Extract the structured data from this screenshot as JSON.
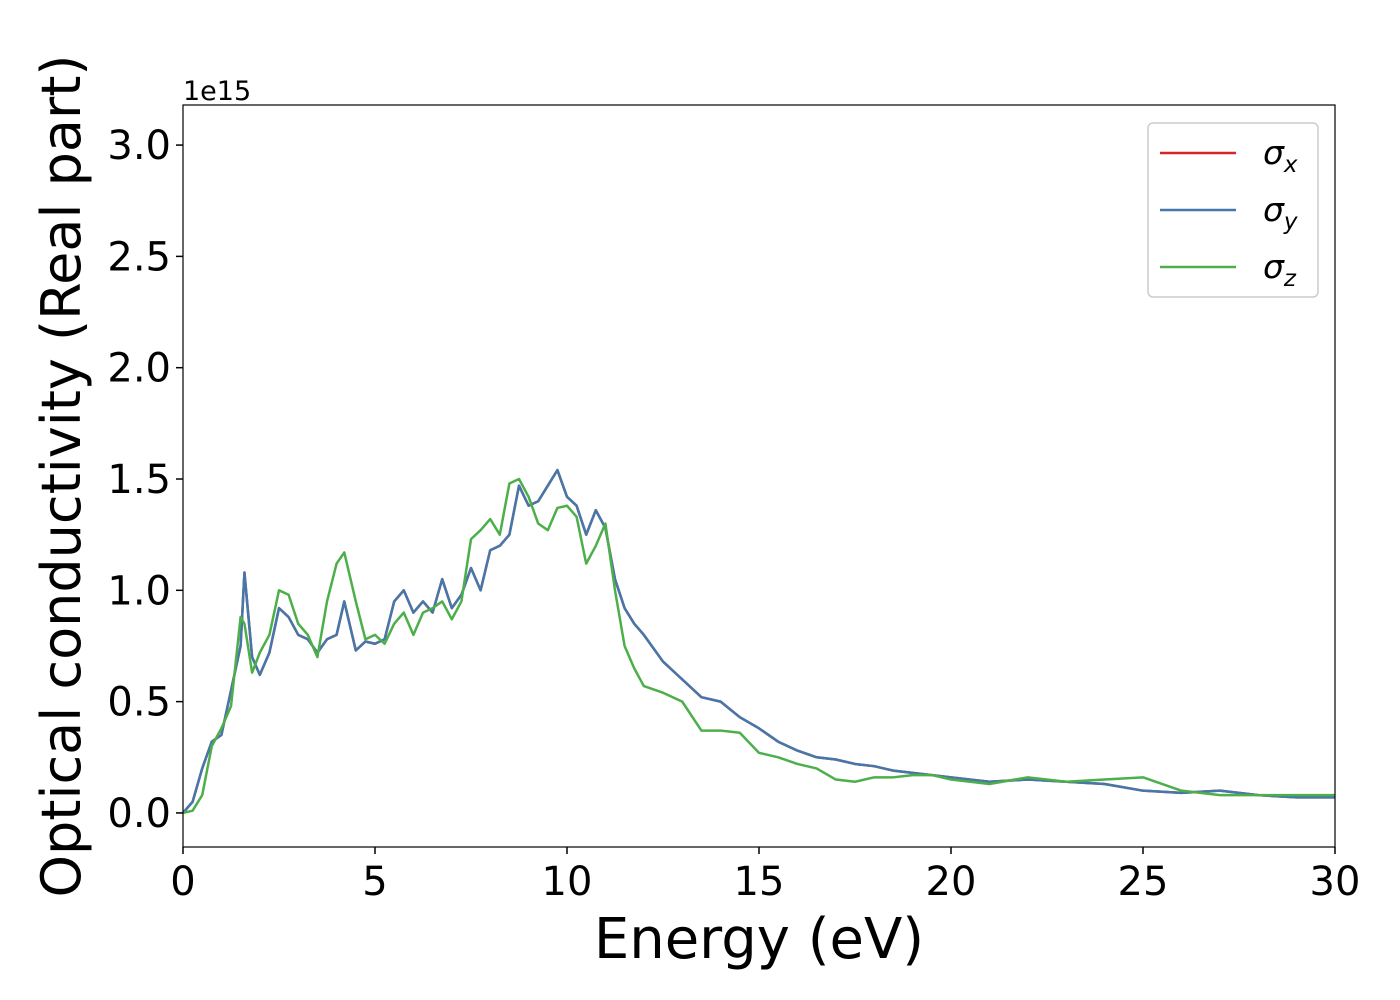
{
  "chart_data": {
    "type": "line",
    "xlabel": "Energy (eV)",
    "ylabel": "Optical conductivity (Real part)",
    "offset_label": "1e15",
    "x": [
      0,
      0.25,
      0.5,
      0.75,
      1,
      1.25,
      1.5,
      1.6,
      1.8,
      2,
      2.25,
      2.5,
      2.75,
      3,
      3.25,
      3.5,
      3.75,
      4,
      4.2,
      4.5,
      4.75,
      5,
      5.25,
      5.5,
      5.75,
      6,
      6.25,
      6.5,
      6.75,
      7,
      7.25,
      7.5,
      7.75,
      8,
      8.25,
      8.5,
      8.75,
      9,
      9.25,
      9.5,
      9.75,
      10,
      10.25,
      10.5,
      10.75,
      11,
      11.25,
      11.5,
      11.75,
      12,
      12.5,
      13,
      13.5,
      14,
      14.5,
      15,
      15.5,
      16,
      16.5,
      17,
      17.5,
      18,
      18.5,
      19,
      19.5,
      20,
      21,
      22,
      23,
      24,
      25,
      26,
      27,
      28,
      29,
      30
    ],
    "series": [
      {
        "name": "σx",
        "color": "#d62728",
        "values": [
          0,
          0.05,
          0.2,
          0.32,
          0.35,
          0.55,
          0.75,
          1.08,
          0.7,
          0.62,
          0.72,
          0.92,
          0.88,
          0.8,
          0.78,
          0.72,
          0.78,
          0.8,
          0.95,
          0.73,
          0.77,
          0.76,
          0.78,
          0.95,
          1.0,
          0.9,
          0.95,
          0.9,
          1.05,
          0.92,
          0.98,
          1.1,
          1.0,
          1.18,
          1.2,
          1.25,
          1.47,
          1.38,
          1.4,
          1.47,
          1.54,
          1.42,
          1.38,
          1.25,
          1.36,
          1.28,
          1.05,
          0.92,
          0.85,
          0.8,
          0.68,
          0.6,
          0.52,
          0.5,
          0.43,
          0.38,
          0.32,
          0.28,
          0.25,
          0.24,
          0.22,
          0.21,
          0.19,
          0.18,
          0.17,
          0.16,
          0.14,
          0.15,
          0.14,
          0.13,
          0.1,
          0.09,
          0.1,
          0.08,
          0.07,
          0.07
        ]
      },
      {
        "name": "σy",
        "color": "#4477aa",
        "values": [
          0,
          0.05,
          0.2,
          0.32,
          0.35,
          0.55,
          0.75,
          1.08,
          0.7,
          0.62,
          0.72,
          0.92,
          0.88,
          0.8,
          0.78,
          0.72,
          0.78,
          0.8,
          0.95,
          0.73,
          0.77,
          0.76,
          0.78,
          0.95,
          1.0,
          0.9,
          0.95,
          0.9,
          1.05,
          0.92,
          0.98,
          1.1,
          1.0,
          1.18,
          1.2,
          1.25,
          1.47,
          1.38,
          1.4,
          1.47,
          1.54,
          1.42,
          1.38,
          1.25,
          1.36,
          1.28,
          1.05,
          0.92,
          0.85,
          0.8,
          0.68,
          0.6,
          0.52,
          0.5,
          0.43,
          0.38,
          0.32,
          0.28,
          0.25,
          0.24,
          0.22,
          0.21,
          0.19,
          0.18,
          0.17,
          0.16,
          0.14,
          0.15,
          0.14,
          0.13,
          0.1,
          0.09,
          0.1,
          0.08,
          0.07,
          0.07
        ]
      },
      {
        "name": "σz",
        "color": "#4daf4a",
        "values": [
          0,
          0.01,
          0.08,
          0.3,
          0.38,
          0.48,
          0.88,
          0.85,
          0.63,
          0.72,
          0.8,
          1.0,
          0.98,
          0.85,
          0.8,
          0.7,
          0.95,
          1.12,
          1.17,
          0.95,
          0.78,
          0.8,
          0.76,
          0.85,
          0.9,
          0.8,
          0.9,
          0.92,
          0.95,
          0.87,
          0.95,
          1.23,
          1.27,
          1.32,
          1.25,
          1.48,
          1.5,
          1.42,
          1.3,
          1.27,
          1.37,
          1.38,
          1.33,
          1.12,
          1.2,
          1.3,
          1.0,
          0.75,
          0.65,
          0.57,
          0.54,
          0.5,
          0.37,
          0.37,
          0.36,
          0.27,
          0.25,
          0.22,
          0.2,
          0.15,
          0.14,
          0.16,
          0.16,
          0.17,
          0.17,
          0.15,
          0.13,
          0.16,
          0.14,
          0.15,
          0.16,
          0.1,
          0.08,
          0.08,
          0.08,
          0.08
        ]
      }
    ],
    "xlim": [
      0,
      30
    ],
    "xticks": [
      0,
      5,
      10,
      15,
      20,
      25,
      30
    ],
    "ylim": [
      -0.153,
      3.18
    ],
    "yticks": [
      {
        "value": 0,
        "label": "0.0"
      },
      0.5,
      {
        "value": 1,
        "label": "1.0"
      },
      1.5,
      {
        "value": 2,
        "label": "2.0"
      },
      2.5,
      {
        "value": 3,
        "label": "3.0"
      }
    ],
    "legend": "upper right",
    "grid": false
  }
}
